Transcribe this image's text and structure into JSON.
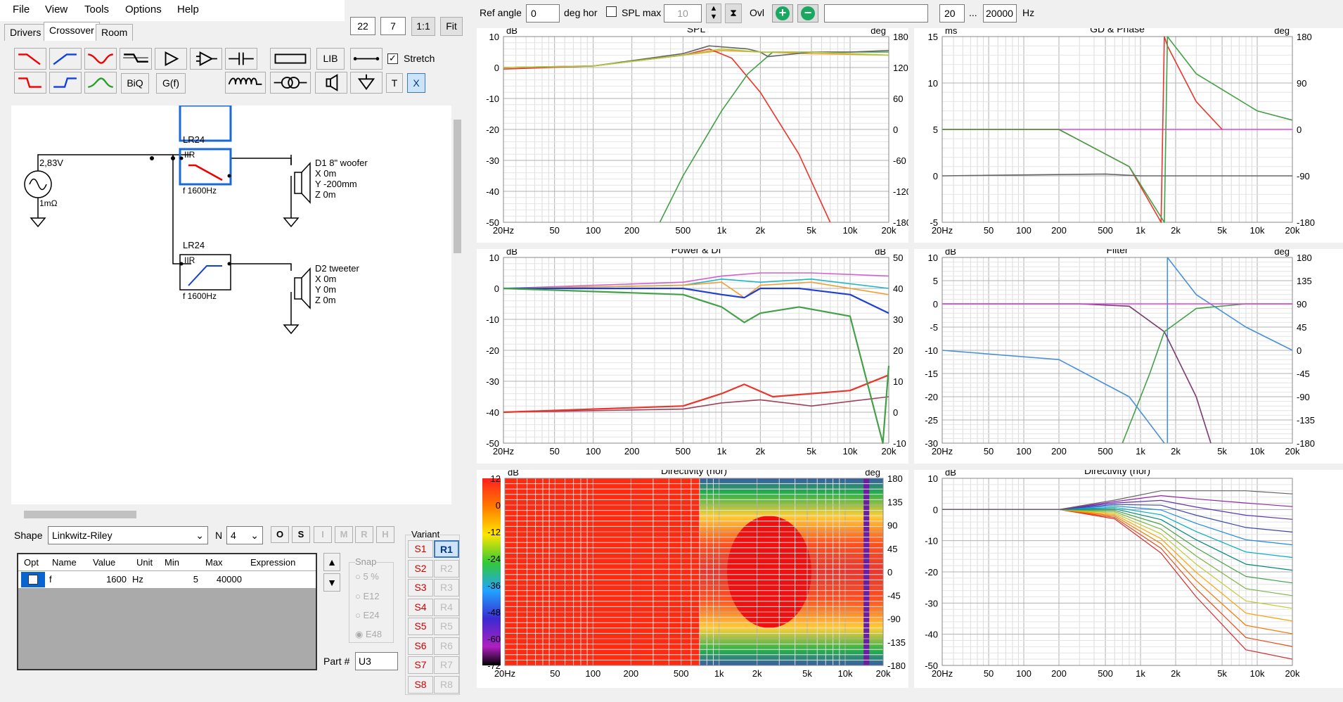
{
  "menu": [
    "File",
    "View",
    "Tools",
    "Options",
    "Help"
  ],
  "tabs": [
    "Drivers",
    "Crossover",
    "Room"
  ],
  "zoom": {
    "a": "22",
    "b": "7",
    "one": "1:1",
    "fit": "Fit"
  },
  "toolbar": {
    "lib": "LIB",
    "biq": "BiQ",
    "gf": "G(f)",
    "t": "T",
    "x": "X",
    "stretch": "Stretch"
  },
  "schematic": {
    "source_v": "2,83V",
    "source_r": "1mΩ",
    "lp_title": "LR24",
    "lp_type": "IIR",
    "lp_freq": "f   1600Hz",
    "hp_title": "LR24",
    "hp_type": "IIR",
    "hp_freq": "f   1600Hz",
    "d1": [
      "D1 8\" woofer",
      "X 0m",
      "Y -200mm",
      "Z 0m"
    ],
    "d2": [
      "D2 tweeter",
      "X 0m",
      "Y 0m",
      "Z 0m"
    ]
  },
  "shape": {
    "label": "Shape",
    "value": "Linkwitz-Riley",
    "n_label": "N",
    "n_value": "4",
    "btns": [
      "O",
      "S",
      "I",
      "M",
      "R",
      "H"
    ]
  },
  "params": {
    "headers": [
      "Opt",
      "Name",
      "Value",
      "Unit",
      "Min",
      "Max",
      "Expression"
    ],
    "rows": [
      {
        "name": "f",
        "value": "1600",
        "unit": "Hz",
        "min": "5",
        "max": "40000",
        "expr": ""
      }
    ]
  },
  "snap": {
    "label": "Snap",
    "opts": [
      "5 %",
      "E12",
      "E24",
      "E48"
    ]
  },
  "part": {
    "label": "Part #",
    "value": "U3"
  },
  "variant": {
    "label": "Variant",
    "s": [
      "S1",
      "S2",
      "S3",
      "S4",
      "S5",
      "S6",
      "S7",
      "S8"
    ],
    "r": [
      "R1",
      "R2",
      "R3",
      "R4",
      "R5",
      "R6",
      "R7",
      "R8"
    ]
  },
  "top": {
    "ref_angle": "Ref angle",
    "ref_value": "0",
    "deg_hor": "deg hor",
    "spl_max": "SPL max",
    "spl_value": "10",
    "ovl": "Ovl",
    "f_lo": "20",
    "dots": "...",
    "f_hi": "20000",
    "hz": "Hz"
  },
  "x_ticks": [
    "20Hz",
    "50",
    "100",
    "200",
    "500",
    "1k",
    "2k",
    "5k",
    "10k",
    "20k"
  ],
  "charts": {
    "spl": {
      "title": "SPL",
      "yunit": "dB",
      "y2unit": "deg",
      "y": [
        "10",
        "0",
        "-10",
        "-20",
        "-30",
        "-40",
        "-50"
      ],
      "y2": [
        "180",
        "120",
        "60",
        "0",
        "-60",
        "-120",
        "-180"
      ]
    },
    "gd": {
      "title": "GD & Phase",
      "yunit": "ms",
      "y2unit": "deg",
      "y": [
        "15",
        "10",
        "5",
        "0",
        "-5"
      ],
      "y2": [
        "180",
        "90",
        "0",
        "-90",
        "-180"
      ]
    },
    "power": {
      "title": "Power & DI",
      "yunit": "dB",
      "y2unit": "dB",
      "y": [
        "10",
        "0",
        "-10",
        "-20",
        "-30",
        "-40",
        "-50"
      ],
      "y2": [
        "50",
        "40",
        "30",
        "20",
        "10",
        "0",
        "-10"
      ]
    },
    "filter": {
      "title": "Filter",
      "yunit": "dB",
      "y2unit": "deg",
      "y": [
        "10",
        "5",
        "0",
        "-5",
        "-10",
        "-15",
        "-20",
        "-25",
        "-30"
      ],
      "y2": [
        "180",
        "135",
        "90",
        "45",
        "0",
        "-45",
        "-90",
        "-135",
        "-180"
      ]
    },
    "dirmap": {
      "title": "Directivity (hor)",
      "yunit": "dB",
      "y2unit": "deg",
      "y": [
        "12",
        "0",
        "-12",
        "-24",
        "-36",
        "-48",
        "-60",
        "-72"
      ],
      "y2": [
        "180",
        "135",
        "90",
        "45",
        "0",
        "-45",
        "-90",
        "-135",
        "-180"
      ]
    },
    "dirlines": {
      "title": "Directivity (hor)",
      "yunit": "dB",
      "y": [
        "10",
        "0",
        "-10",
        "-20",
        "-30",
        "-40",
        "-50"
      ]
    }
  },
  "chart_data": [
    {
      "type": "line",
      "title": "SPL",
      "xlabel": "",
      "ylabel": "dB",
      "xscale": "log",
      "xlim": [
        20,
        20000
      ],
      "ylim": [
        -50,
        10
      ],
      "series": [
        {
          "color": "#e8362b",
          "x": [
            20,
            100,
            500,
            800,
            1200,
            2000,
            4000,
            7000
          ],
          "y": [
            -0.5,
            0.5,
            4,
            6,
            3,
            -8,
            -28,
            -50
          ]
        },
        {
          "color": "#43a047",
          "x": [
            330,
            500,
            1000,
            1600,
            2500,
            5000,
            10000,
            20000
          ],
          "y": [
            -50,
            -35,
            -14,
            -2,
            5,
            5,
            5,
            5
          ]
        },
        {
          "color": "#666666",
          "x": [
            20,
            100,
            500,
            800,
            1600,
            2000,
            2300,
            5000,
            10000,
            20000
          ],
          "y": [
            0,
            0.5,
            4.5,
            7,
            6,
            5,
            3.5,
            5,
            5,
            5.5
          ]
        },
        {
          "color": "#aecb3b",
          "x": [
            20,
            100,
            500,
            1000,
            2000,
            5000,
            20000
          ],
          "y": [
            0,
            0.5,
            4,
            6,
            5,
            5,
            4
          ]
        }
      ]
    },
    {
      "type": "line",
      "title": "GD & Phase",
      "ylabel": "ms",
      "xscale": "log",
      "xlim": [
        20,
        20000
      ],
      "ylim": [
        -5,
        15
      ],
      "series": [
        {
          "color": "#e040e0",
          "x": [
            20,
            20000
          ],
          "y": [
            5,
            5
          ]
        },
        {
          "color": "#e8362b",
          "x": [
            20,
            200,
            800,
            1500,
            1600,
            1700,
            3000,
            5000
          ],
          "y": [
            5,
            5,
            1,
            -5,
            15,
            14,
            8,
            5
          ]
        },
        {
          "color": "#43a047",
          "x": [
            20,
            200,
            800,
            1600,
            1700,
            3000,
            10000,
            20000
          ],
          "y": [
            5,
            5,
            1,
            -5,
            15,
            11,
            7,
            6
          ]
        },
        {
          "color": "#666666",
          "x": [
            20,
            500,
            1000,
            20000
          ],
          "y": [
            0,
            0.2,
            0,
            0
          ]
        }
      ]
    },
    {
      "type": "line",
      "title": "Power & DI",
      "ylabel": "dB",
      "xscale": "log",
      "xlim": [
        20,
        20000
      ],
      "ylim": [
        -50,
        10
      ],
      "series": [
        {
          "color": "#1f3ed6",
          "x": [
            20,
            500,
            1000,
            1500,
            2000,
            4000,
            10000,
            20000
          ],
          "y": [
            0,
            0,
            -2,
            -3,
            0,
            0,
            -2,
            -8
          ]
        },
        {
          "color": "#e8362b",
          "x": [
            20,
            500,
            1000,
            1500,
            2500,
            5000,
            10000,
            20000
          ],
          "y": [
            -40,
            -38,
            -34,
            -31,
            -35,
            -34,
            -33,
            -28
          ]
        },
        {
          "color": "#43a047",
          "x": [
            20,
            500,
            1000,
            1500,
            2000,
            4000,
            10000,
            18000,
            20000
          ],
          "y": [
            0,
            -2,
            -6,
            -11,
            -8,
            -6,
            -9,
            -50,
            -25
          ]
        }
      ]
    },
    {
      "type": "line",
      "title": "Filter",
      "ylabel": "dB",
      "xscale": "log",
      "xlim": [
        20,
        20000
      ],
      "ylim": [
        -30,
        10
      ],
      "series": [
        {
          "color": "#7a3b6e",
          "x": [
            20,
            300,
            800,
            1600,
            3000,
            4000
          ],
          "y": [
            0,
            0,
            -0.5,
            -6,
            -20,
            -30
          ]
        },
        {
          "color": "#43a047",
          "x": [
            700,
            1200,
            1600,
            3000,
            8000,
            20000
          ],
          "y": [
            -30,
            -15,
            -6,
            -1,
            0,
            0
          ]
        },
        {
          "color": "#4a90d9",
          "x": [
            20,
            200,
            800,
            1600
          ],
          "y": [
            -10,
            -12,
            -20,
            -30
          ]
        },
        {
          "color": "#e040e0",
          "x": [
            20,
            20000
          ],
          "y": [
            0,
            0
          ]
        }
      ]
    },
    {
      "type": "heatmap",
      "title": "Directivity (hor)",
      "ylabel": "dB",
      "xscale": "log",
      "xlim": [
        20,
        20000
      ],
      "ylim": [
        -180,
        180
      ]
    },
    {
      "type": "line",
      "title": "Directivity (hor)",
      "ylabel": "dB",
      "xscale": "log",
      "xlim": [
        20,
        20000
      ],
      "ylim": [
        -50,
        10
      ]
    }
  ]
}
